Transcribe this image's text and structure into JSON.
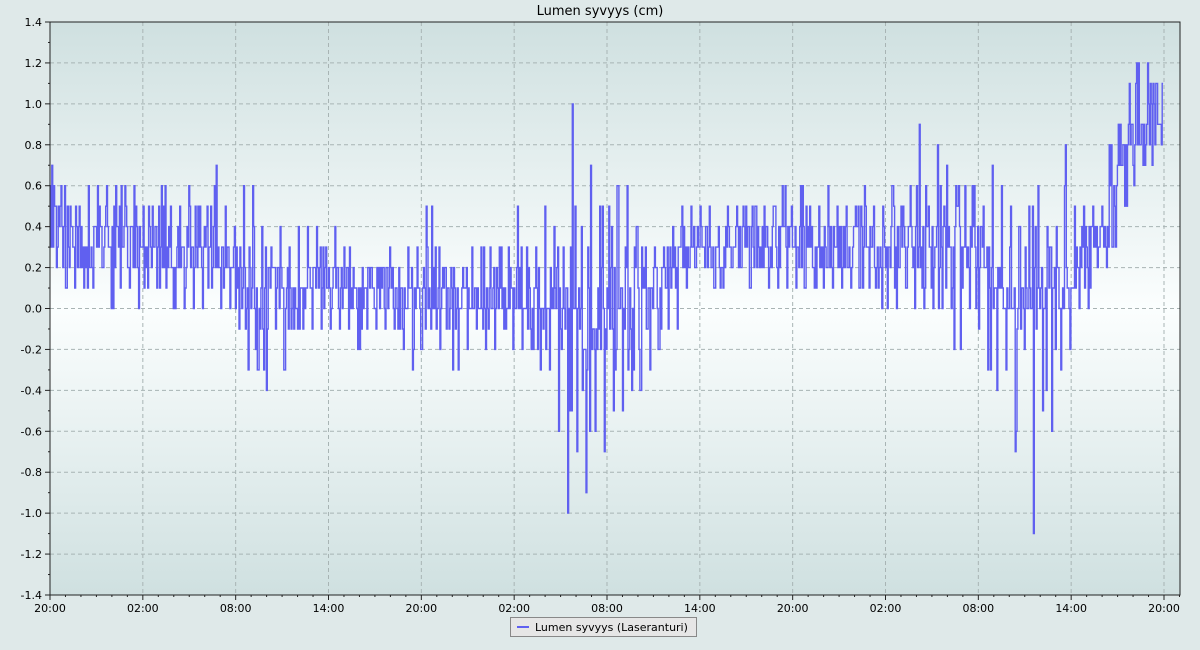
{
  "chart_data": {
    "type": "line",
    "title": "Lumen syvyys (cm)",
    "xlabel": "",
    "ylabel": "",
    "ylim": [
      -1.4,
      1.4
    ],
    "yticks": [
      "1.4",
      "1.2",
      "1.0",
      "0.8",
      "0.6",
      "0.4",
      "0.2",
      "0.0",
      "-0.2",
      "-0.4",
      "-0.6",
      "-0.8",
      "-1.0",
      "-1.2",
      "-1.4"
    ],
    "xticks": [
      "20:00",
      "02:00",
      "08:00",
      "14:00",
      "20:00",
      "02:00",
      "08:00",
      "14:00",
      "20:00",
      "02:00",
      "08:00",
      "14:00",
      "20:00"
    ],
    "grid": true,
    "legend_position": "bottom-center",
    "series": [
      {
        "name": "Lumen syvyys (Laseranturi)",
        "color": "#6060f0",
        "sampling": "hourly segments, each with [min, typical, max] in cm",
        "hours": [
          [
            0.2,
            0.4,
            0.7
          ],
          [
            0.1,
            0.4,
            0.6
          ],
          [
            0.1,
            0.3,
            0.5
          ],
          [
            0.1,
            0.3,
            0.5
          ],
          [
            0.1,
            0.35,
            0.6
          ],
          [
            0.2,
            0.4,
            0.6
          ],
          [
            0.0,
            0.35,
            0.6
          ],
          [
            0.1,
            0.4,
            0.6
          ],
          [
            0.1,
            0.4,
            0.6
          ],
          [
            0.0,
            0.3,
            0.6
          ],
          [
            0.1,
            0.3,
            0.5
          ],
          [
            0.1,
            0.3,
            0.5
          ],
          [
            0.1,
            0.35,
            0.6
          ],
          [
            0.0,
            0.3,
            0.5
          ],
          [
            0.0,
            0.3,
            0.5
          ],
          [
            0.0,
            0.3,
            0.6
          ],
          [
            0.0,
            0.3,
            0.5
          ],
          [
            0.1,
            0.3,
            0.5
          ],
          [
            0.0,
            0.3,
            0.7
          ],
          [
            0.0,
            0.25,
            0.5
          ],
          [
            -0.1,
            0.2,
            0.4
          ],
          [
            -0.3,
            0.1,
            0.6
          ],
          [
            -0.3,
            0.05,
            0.6
          ],
          [
            -0.4,
            0.1,
            0.4
          ],
          [
            -0.1,
            0.15,
            0.3
          ],
          [
            -0.3,
            0.1,
            0.4
          ],
          [
            -0.1,
            0.1,
            0.3
          ],
          [
            -0.1,
            0.15,
            0.4
          ],
          [
            -0.1,
            0.15,
            0.4
          ],
          [
            -0.1,
            0.2,
            0.4
          ],
          [
            -0.1,
            0.15,
            0.3
          ],
          [
            -0.1,
            0.15,
            0.4
          ],
          [
            -0.1,
            0.1,
            0.3
          ],
          [
            -0.2,
            0.05,
            0.2
          ],
          [
            -0.1,
            0.1,
            0.2
          ],
          [
            -0.1,
            0.1,
            0.2
          ],
          [
            -0.1,
            0.1,
            0.2
          ],
          [
            -0.1,
            0.05,
            0.3
          ],
          [
            -0.2,
            0.05,
            0.2
          ],
          [
            -0.3,
            0.05,
            0.3
          ],
          [
            -0.2,
            0.05,
            0.3
          ],
          [
            -0.1,
            0.05,
            0.5
          ],
          [
            -0.2,
            0.05,
            0.3
          ],
          [
            -0.1,
            0.05,
            0.2
          ],
          [
            -0.3,
            0.05,
            0.2
          ],
          [
            -0.2,
            0.05,
            0.2
          ],
          [
            -0.1,
            0.05,
            0.3
          ],
          [
            -0.2,
            0.05,
            0.3
          ],
          [
            -0.2,
            0.1,
            0.3
          ],
          [
            -0.1,
            0.05,
            0.3
          ],
          [
            -0.2,
            0.05,
            0.3
          ],
          [
            -0.2,
            0.05,
            0.5
          ],
          [
            -0.2,
            0.05,
            0.3
          ],
          [
            -0.3,
            0.05,
            0.3
          ],
          [
            -0.3,
            0.0,
            0.5
          ],
          [
            -0.6,
            0.0,
            0.4
          ],
          [
            -1.0,
            0.0,
            0.3
          ],
          [
            -0.7,
            0.05,
            1.0
          ],
          [
            -0.9,
            -0.1,
            0.4
          ],
          [
            -0.6,
            -0.1,
            0.7
          ],
          [
            -0.7,
            -0.1,
            0.5
          ],
          [
            -0.5,
            0.0,
            0.5
          ],
          [
            -0.5,
            0.0,
            0.6
          ],
          [
            -0.4,
            0.05,
            0.6
          ],
          [
            -0.4,
            0.05,
            0.4
          ],
          [
            -0.3,
            0.1,
            0.3
          ],
          [
            -0.2,
            0.1,
            0.3
          ],
          [
            -0.1,
            0.15,
            0.3
          ],
          [
            -0.1,
            0.2,
            0.4
          ],
          [
            0.1,
            0.3,
            0.5
          ],
          [
            0.2,
            0.3,
            0.5
          ],
          [
            0.2,
            0.35,
            0.5
          ],
          [
            0.1,
            0.3,
            0.5
          ],
          [
            0.1,
            0.3,
            0.4
          ],
          [
            0.2,
            0.3,
            0.5
          ],
          [
            0.2,
            0.3,
            0.5
          ],
          [
            0.1,
            0.3,
            0.5
          ],
          [
            0.2,
            0.3,
            0.5
          ],
          [
            0.1,
            0.3,
            0.5
          ],
          [
            0.1,
            0.3,
            0.5
          ],
          [
            0.1,
            0.3,
            0.6
          ],
          [
            0.1,
            0.3,
            0.5
          ],
          [
            0.1,
            0.3,
            0.6
          ],
          [
            0.1,
            0.3,
            0.5
          ],
          [
            0.1,
            0.3,
            0.5
          ],
          [
            0.1,
            0.3,
            0.6
          ],
          [
            0.1,
            0.3,
            0.5
          ],
          [
            0.1,
            0.3,
            0.5
          ],
          [
            0.1,
            0.3,
            0.5
          ],
          [
            0.1,
            0.3,
            0.6
          ],
          [
            0.1,
            0.3,
            0.5
          ],
          [
            0.0,
            0.3,
            0.5
          ],
          [
            0.0,
            0.3,
            0.6
          ],
          [
            0.1,
            0.3,
            0.5
          ],
          [
            0.0,
            0.3,
            0.6
          ],
          [
            0.0,
            0.3,
            0.9
          ],
          [
            0.0,
            0.3,
            0.5
          ],
          [
            0.0,
            0.3,
            0.8
          ],
          [
            0.0,
            0.3,
            0.7
          ],
          [
            -0.2,
            0.2,
            0.6
          ],
          [
            0.0,
            0.3,
            0.6
          ],
          [
            -0.1,
            0.3,
            0.6
          ],
          [
            -0.3,
            0.2,
            0.5
          ],
          [
            -0.4,
            0.1,
            0.7
          ],
          [
            -0.3,
            0.1,
            0.6
          ],
          [
            -0.7,
            0.0,
            0.5
          ],
          [
            -0.2,
            0.05,
            0.4
          ],
          [
            -1.1,
            0.05,
            0.5
          ],
          [
            -0.5,
            0.05,
            0.6
          ],
          [
            -0.6,
            0.05,
            0.4
          ],
          [
            -0.3,
            0.1,
            0.4
          ],
          [
            -0.2,
            0.15,
            0.8
          ],
          [
            0.0,
            0.2,
            0.5
          ],
          [
            0.0,
            0.3,
            0.5
          ],
          [
            0.2,
            0.35,
            0.5
          ],
          [
            0.2,
            0.4,
            0.5
          ],
          [
            0.3,
            0.6,
            0.8
          ],
          [
            0.5,
            0.75,
            0.9
          ],
          [
            0.6,
            0.85,
            1.1
          ],
          [
            0.7,
            0.9,
            1.2
          ],
          [
            0.7,
            0.95,
            1.2
          ],
          [
            0.8,
            0.9,
            1.1
          ]
        ]
      }
    ]
  }
}
